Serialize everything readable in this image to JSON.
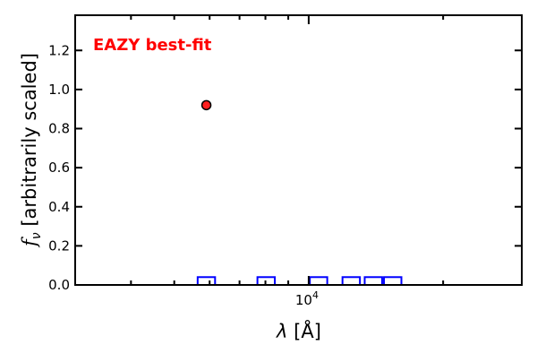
{
  "chart_data": {
    "type": "scatter",
    "title": "",
    "annotation": "EAZY best-fit",
    "annotation_color": "#ff0000",
    "xlabel_symbol": "λ",
    "xlabel_unit": "[Å]",
    "ylabel_symbol": "f",
    "ylabel_subscript": "ν",
    "ylabel_text": "[arbitrarily scaled]",
    "xscale": "log",
    "xlim": [
      3000,
      30000
    ],
    "ylim": [
      0,
      1.38
    ],
    "x_major_ticks": [
      {
        "value": 10000,
        "base": "10",
        "exp": "4"
      }
    ],
    "x_minor_ticks": [
      4000,
      5000,
      6000,
      7000,
      8000,
      9000,
      20000
    ],
    "y_ticks": [
      0.0,
      0.2,
      0.4,
      0.6,
      0.8,
      1.0,
      1.2
    ],
    "y_tick_labels": [
      "0.0",
      "0.2",
      "0.4",
      "0.6",
      "0.8",
      "1.0",
      "1.2"
    ],
    "points": [
      {
        "x": 5900,
        "y": 0.92,
        "yerr": 0.01,
        "color": "#ff2020"
      }
    ],
    "filters": {
      "color": "#0000ff",
      "height": 0.04,
      "log_width_dex": 0.039,
      "centers": [
        5900,
        8030,
        10520,
        12450,
        13960,
        15420
      ]
    }
  }
}
